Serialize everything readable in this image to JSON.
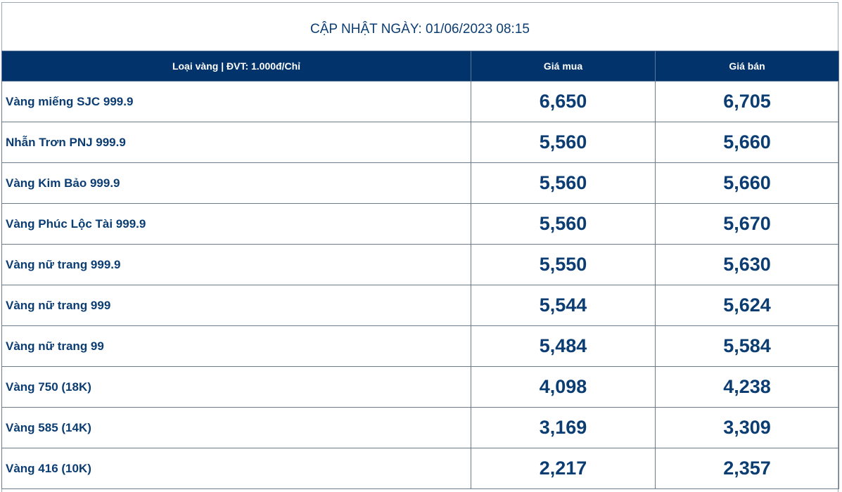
{
  "header": {
    "title": "CẬP NHẬT NGÀY: 01/06/2023 08:15"
  },
  "table": {
    "columns": [
      "Loại vàng | ĐVT: 1.000đ/Chỉ",
      "Giá mua",
      "Giá bán"
    ],
    "rows": [
      [
        "Vàng miếng SJC 999.9",
        "6,650",
        "6,705"
      ],
      [
        "Nhẫn Trơn PNJ 999.9",
        "5,560",
        "5,660"
      ],
      [
        "Vàng Kim Bảo 999.9",
        "5,560",
        "5,660"
      ],
      [
        "Vàng Phúc Lộc Tài 999.9",
        "5,560",
        "5,670"
      ],
      [
        "Vàng nữ trang 999.9",
        "5,550",
        "5,630"
      ],
      [
        "Vàng nữ trang 999",
        "5,544",
        "5,624"
      ],
      [
        "Vàng nữ trang 99",
        "5,484",
        "5,584"
      ],
      [
        "Vàng 750 (18K)",
        "4,098",
        "4,238"
      ],
      [
        "Vàng 585 (14K)",
        "3,169",
        "3,309"
      ],
      [
        "Vàng 416 (10K)",
        "2,217",
        "2,357"
      ]
    ]
  }
}
